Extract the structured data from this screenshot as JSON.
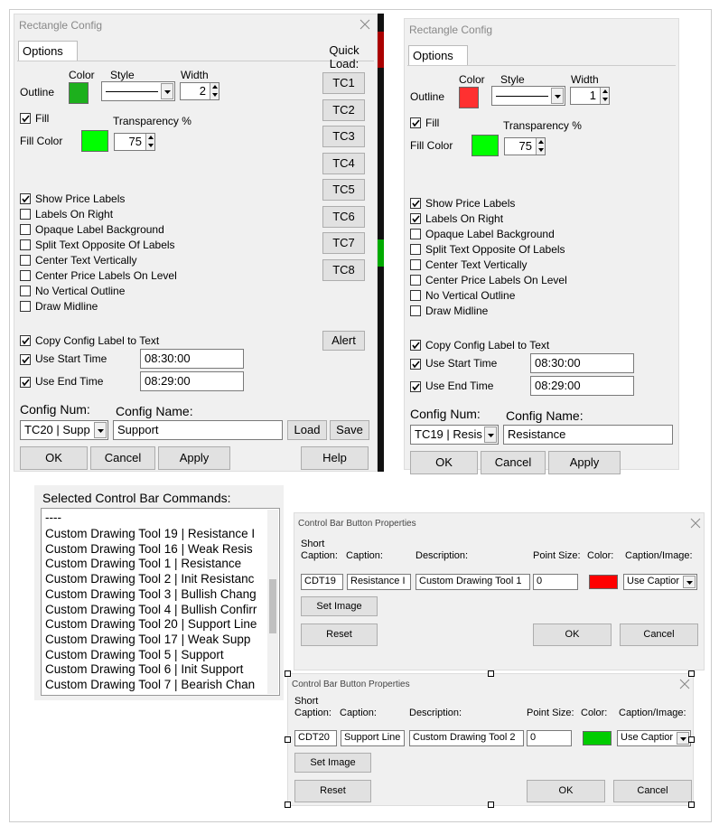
{
  "config_dialogs": [
    {
      "title": "Rectangle Config",
      "tab": "Options",
      "quick_load": {
        "label": "Quick Load:",
        "buttons": [
          "TC1",
          "TC2",
          "TC3",
          "TC4",
          "TC5",
          "TC6",
          "TC7",
          "TC8"
        ]
      },
      "outline": {
        "label": "Outline",
        "color_label": "Color",
        "style_label": "Style",
        "width_label": "Width",
        "color": "#1db01d",
        "width": 2
      },
      "fill": {
        "label": "Fill",
        "checked": true,
        "color_label": "Fill Color",
        "color": "#00ff00",
        "transparency_label": "Transparency %",
        "transparency": 75
      },
      "options": [
        {
          "label": "Show Price Labels",
          "checked": true
        },
        {
          "label": "Labels On Right",
          "checked": false
        },
        {
          "label": "Opaque Label Background",
          "checked": false
        },
        {
          "label": "Split Text Opposite Of Labels",
          "checked": false
        },
        {
          "label": "Center Text Vertically",
          "checked": false
        },
        {
          "label": "Center Price Labels On Level",
          "checked": false
        },
        {
          "label": "No Vertical Outline",
          "checked": false
        },
        {
          "label": "Draw Midline",
          "checked": false
        }
      ],
      "alert": "Alert",
      "copy_label": {
        "label": "Copy Config Label to Text",
        "checked": true
      },
      "start_time": {
        "label": "Use Start Time",
        "checked": true,
        "value": "08:30:00"
      },
      "end_time": {
        "label": "Use End Time",
        "checked": true,
        "value": "08:29:00"
      },
      "config_num": {
        "label": "Config Num:",
        "value": "TC20 | Supp"
      },
      "config_name": {
        "label": "Config Name:",
        "value": "Support"
      },
      "buttons": [
        "Load",
        "Save"
      ],
      "footer_buttons": [
        "OK",
        "Cancel",
        "Apply",
        "Help"
      ]
    },
    {
      "title": "Rectangle Config",
      "tab": "Options",
      "outline": {
        "label": "Outline",
        "color_label": "Color",
        "style_label": "Style",
        "width_label": "Width",
        "color": "#ff3030",
        "width": 1
      },
      "fill": {
        "label": "Fill",
        "checked": true,
        "color_label": "Fill Color",
        "color": "#00ff00",
        "transparency_label": "Transparency %",
        "transparency": 75
      },
      "options": [
        {
          "label": "Show Price Labels",
          "checked": true
        },
        {
          "label": "Labels On Right",
          "checked": true
        },
        {
          "label": "Opaque Label Background",
          "checked": false
        },
        {
          "label": "Split Text Opposite Of Labels",
          "checked": false
        },
        {
          "label": "Center Text Vertically",
          "checked": false
        },
        {
          "label": "Center Price Labels On Level",
          "checked": false
        },
        {
          "label": "No Vertical Outline",
          "checked": false
        },
        {
          "label": "Draw Midline",
          "checked": false
        }
      ],
      "copy_label": {
        "label": "Copy Config Label to Text",
        "checked": true
      },
      "start_time": {
        "label": "Use Start Time",
        "checked": true,
        "value": "08:30:00"
      },
      "end_time": {
        "label": "Use End Time",
        "checked": true,
        "value": "08:29:00"
      },
      "config_num": {
        "label": "Config Num:",
        "value": "TC19 | Resis"
      },
      "config_name": {
        "label": "Config Name:",
        "value": "Resistance"
      },
      "footer_buttons": [
        "OK",
        "Cancel",
        "Apply"
      ]
    }
  ],
  "command_list": {
    "label": "Selected Control Bar Commands:",
    "items": [
      "----",
      "Custom Drawing Tool 19 | Resistance I",
      "Custom Drawing Tool 16 | Weak Resis",
      "Custom Drawing Tool 1 | Resistance",
      "Custom Drawing Tool 2 | Init Resistanc",
      "Custom Drawing Tool 3 | Bullish Chang",
      "Custom Drawing Tool 4 | Bullish Confirr",
      "Custom Drawing Tool 20 | Support Line",
      "Custom Drawing Tool 17 | Weak Supp",
      "Custom Drawing Tool 5 | Support",
      "Custom Drawing Tool 6 | Init Support",
      "Custom Drawing Tool 7 | Bearish Chan"
    ]
  },
  "button_dialogs": [
    {
      "title": "Control Bar Button Properties",
      "short_caption_label": "Short Caption:",
      "caption_label": "Caption:",
      "description_label": "Description:",
      "point_size_label": "Point Size:",
      "color_label": "Color:",
      "caption_image_label": "Caption/Image:",
      "short_caption": "CDT19",
      "caption": "Resistance I",
      "description": "Custom Drawing Tool 1",
      "point_size": 0,
      "color": "#ff0000",
      "caption_image": "Use Captior",
      "buttons": {
        "set_image": "Set Image",
        "reset": "Reset",
        "ok": "OK",
        "cancel": "Cancel"
      }
    },
    {
      "title": "Control Bar Button Properties",
      "short_caption_label": "Short Caption:",
      "caption_label": "Caption:",
      "description_label": "Description:",
      "point_size_label": "Point Size:",
      "color_label": "Color:",
      "caption_image_label": "Caption/Image:",
      "short_caption": "CDT20",
      "caption": "Support Line",
      "description": "Custom Drawing Tool 2",
      "point_size": 0,
      "color": "#00cc00",
      "caption_image": "Use Captior",
      "buttons": {
        "set_image": "Set Image",
        "reset": "Reset",
        "ok": "OK",
        "cancel": "Cancel"
      }
    }
  ]
}
